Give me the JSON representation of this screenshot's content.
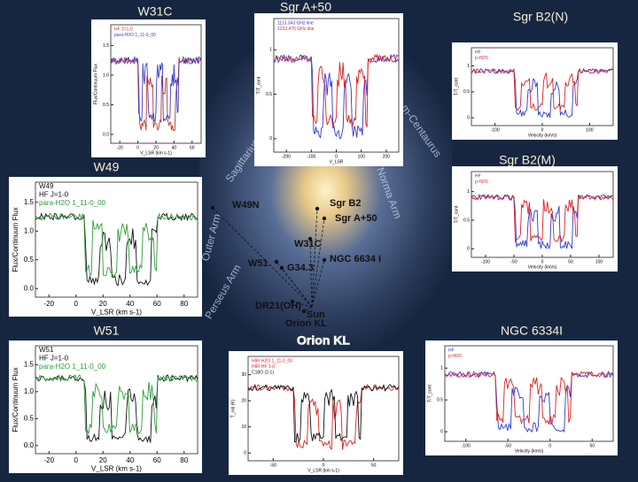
{
  "panels": [
    {
      "title": "W31C",
      "legend": [
        {
          "text": "HF J=1-0",
          "color": "#c0392b"
        },
        {
          "text": "para-H2O 1_11-0_00",
          "color": "#3b3bd0"
        }
      ],
      "xlabel": "V_LSR (km s-1)",
      "ylabel": "Flux/Continuum Flux",
      "xticks": [
        "-20",
        "0",
        "20",
        "40",
        "60"
      ],
      "yticks": [
        "0.0",
        "0.5",
        "1.0",
        "1.5"
      ]
    },
    {
      "title": "Sgr A+50",
      "legend": [
        {
          "text": "1113.343 GHz line",
          "color": "#2a3ad8"
        },
        {
          "text": "1232.476 GHz line",
          "color": "#e02020"
        }
      ],
      "xlabel": "V_LSR",
      "ylabel": "T/T_cont",
      "xticks": [
        "-200",
        "-100",
        "0",
        "100",
        "200"
      ],
      "yticks": [
        "0",
        "0.5",
        "1"
      ]
    },
    {
      "title": "Sgr B2(N)",
      "legend": [
        {
          "text": "HF",
          "color": "#2a3ad8"
        },
        {
          "text": "p-H2O",
          "color": "#e02020"
        }
      ],
      "xlabel": "Velocity (km/s)",
      "ylabel": "T/T_cont",
      "xticks": [
        "-100",
        "0",
        "100"
      ],
      "yticks": [
        "0",
        "0.5",
        "1"
      ]
    },
    {
      "title": "W49",
      "legend": [
        {
          "text": "W49",
          "color": "#111111"
        },
        {
          "text": "HF J=1-0",
          "color": "#111111"
        },
        {
          "text": "para-H2O 1_11-0_00",
          "color": "#2e9e3a"
        }
      ],
      "xlabel": "V_LSR (km s-1)",
      "ylabel": "Flux/Continuum Flux",
      "xticks": [
        "-20",
        "0",
        "20",
        "40",
        "60",
        "80"
      ],
      "yticks": [
        "0.0",
        "0.5",
        "1.0",
        "1.5"
      ]
    },
    {
      "title": "Sgr B2(M)",
      "legend": [
        {
          "text": "HF",
          "color": "#2a3ad8"
        },
        {
          "text": "p-H2O",
          "color": "#e02020"
        }
      ],
      "xlabel": "Velocity (km/s)",
      "ylabel": "T/T_cont",
      "xticks": [
        "-100",
        "-50",
        "0",
        "50",
        "100"
      ],
      "yticks": [
        "0",
        "0.5",
        "1"
      ]
    },
    {
      "title": "W51",
      "legend": [
        {
          "text": "W51",
          "color": "#111111"
        },
        {
          "text": "HF J=1-0",
          "color": "#111111"
        },
        {
          "text": "para-H2O 1_11-0_00",
          "color": "#2e9e3a"
        }
      ],
      "xlabel": "V_LSR (km s-1)",
      "ylabel": "Flux/Continuum Flux",
      "xticks": [
        "-20",
        "0",
        "20",
        "40",
        "60",
        "80"
      ],
      "yticks": [
        "0.0",
        "0.5",
        "1.0",
        "1.5"
      ]
    },
    {
      "title": "Orion KL",
      "legend": [
        {
          "text": "HIFI H2O 1_11-0_00",
          "color": "#e02020"
        },
        {
          "text": "HIFI HF 1-0",
          "color": "#e02020"
        },
        {
          "text": "C18O (2-1)",
          "color": "#111111"
        }
      ],
      "xlabel": "V_LSR (km s-1)",
      "ylabel": "T_mb (K)",
      "xticks": [
        "-50",
        "0",
        "50"
      ],
      "yticks": [
        "0",
        "10",
        "20",
        "30"
      ]
    },
    {
      "title": "NGC 6334I",
      "legend": [
        {
          "text": "HF",
          "color": "#2a3ad8"
        },
        {
          "text": "p-H2O",
          "color": "#e02020"
        }
      ],
      "xlabel": "Velocity (km/s)",
      "ylabel": "T/T_cont",
      "xticks": [
        "-100",
        "-50",
        "0",
        "50"
      ],
      "yticks": [
        "0",
        "0.5",
        "1"
      ]
    }
  ],
  "map": {
    "sources": [
      "W49N",
      "Sgr B2",
      "Sgr A+50",
      "W31C",
      "NGC 6634 I",
      "W51",
      "G34.3",
      "DR21(OH)",
      "Orion KL",
      "Sun"
    ],
    "arms": [
      "Sagittarius Arm",
      "Norma Arm",
      "Perseus Arm",
      "Outer Arm",
      "m-Centaurus"
    ]
  }
}
